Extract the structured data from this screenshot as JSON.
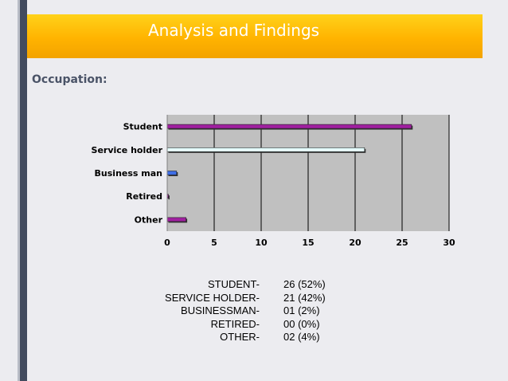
{
  "slide": {
    "title": "Analysis and Findings",
    "section_label": "Occupation:"
  },
  "chart_data": {
    "type": "bar",
    "orientation": "horizontal",
    "categories": [
      "Student",
      "Service holder",
      "Business man",
      "Retired",
      "Other"
    ],
    "values": [
      26,
      21,
      1,
      0,
      2
    ],
    "colors": [
      "#a020a0",
      "#e6ffff",
      "#3f6ee6",
      "#a020a0",
      "#a020a0"
    ],
    "xlim": [
      0,
      30
    ],
    "xticks": [
      0,
      5,
      10,
      15,
      20,
      25,
      30
    ],
    "grid": true,
    "legend": "none"
  },
  "summary": [
    {
      "label": "STUDENT-",
      "value": "26 (52%)"
    },
    {
      "label": "SERVICE HOLDER-",
      "value": "21 (42%)"
    },
    {
      "label": "BUSINESSMAN-",
      "value": "01 (2%)"
    },
    {
      "label": "RETIRED-",
      "value": "00 (0%)"
    },
    {
      "label": "OTHER-",
      "value": "02 (4%)"
    }
  ]
}
